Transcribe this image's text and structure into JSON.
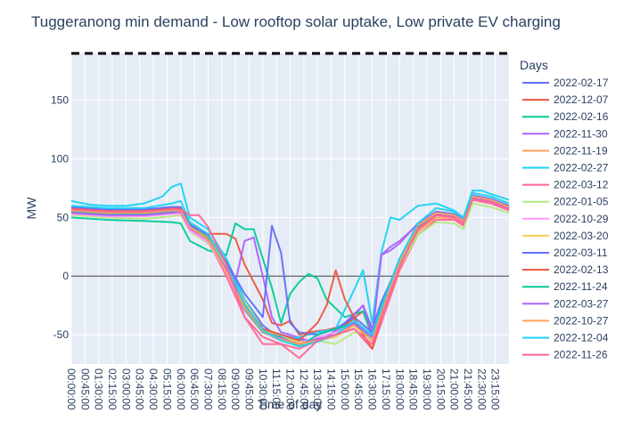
{
  "chart_data": {
    "type": "line",
    "title": "Tuggeranong min demand - Low rooftop solar uptake, Low private EV charging",
    "xlabel": "Time of day",
    "ylabel": "MW",
    "ylim": [
      -75,
      190
    ],
    "yticks": [
      -50,
      0,
      50,
      100,
      150
    ],
    "x_tick_labels": [
      "00:00:00",
      "00:45:00",
      "01:30:00",
      "02:15:00",
      "03:00:00",
      "03:45:00",
      "04:30:00",
      "05:15:00",
      "06:00:00",
      "06:45:00",
      "07:30:00",
      "08:15:00",
      "09:00:00",
      "09:45:00",
      "10:30:00",
      "11:15:00",
      "12:00:00",
      "12:45:00",
      "13:30:00",
      "14:15:00",
      "15:00:00",
      "15:45:00",
      "16:30:00",
      "17:15:00",
      "18:00:00",
      "18:45:00",
      "19:30:00",
      "20:15:00",
      "21:00:00",
      "21:45:00",
      "22:30:00",
      "23:15:00"
    ],
    "x_unit": "hours",
    "x_range": [
      0,
      24
    ],
    "grid": true,
    "legend_title": "Days",
    "legend_position": "right",
    "reference_lines": [
      {
        "y": 0,
        "style": "solid",
        "color": "#444444"
      },
      {
        "y": 190,
        "style": "dashed",
        "color": "#000000"
      }
    ],
    "series": [
      {
        "name": "2022-02-17",
        "color": "#636efa",
        "x": [
          0,
          2,
          4,
          5.5,
          6,
          6.5,
          7.5,
          8.5,
          9.5,
          10.5,
          11,
          11.5,
          12,
          13,
          14,
          15,
          16,
          16.5,
          17,
          18,
          19,
          20,
          21,
          21.5,
          22,
          23,
          24
        ],
        "y": [
          57,
          55,
          55,
          57,
          57,
          44,
          34,
          12,
          -20,
          -42,
          -48,
          -50,
          -52,
          -56,
          -52,
          -42,
          -25,
          -45,
          -22,
          12,
          38,
          52,
          51,
          46,
          68,
          65,
          59
        ]
      },
      {
        "name": "2022-12-07",
        "color": "#ef553b",
        "x": [
          0,
          2,
          4,
          5.5,
          6,
          6.5,
          7.5,
          8.5,
          9,
          9.5,
          10,
          10.5,
          11,
          11.5,
          12,
          12.5,
          13,
          14,
          15,
          16,
          16.5,
          17,
          18,
          19,
          20,
          21,
          21.5,
          22,
          23,
          24
        ],
        "y": [
          58,
          56,
          56,
          58,
          58,
          42,
          36,
          36,
          32,
          10,
          -5,
          -20,
          -40,
          -42,
          -38,
          -50,
          -48,
          -46,
          -42,
          -30,
          -50,
          -28,
          10,
          38,
          52,
          50,
          45,
          67,
          64,
          58
        ]
      },
      {
        "name": "2022-02-16",
        "color": "#00cc96",
        "x": [
          0,
          2,
          4,
          5.5,
          6,
          6.5,
          7.5,
          8.5,
          9,
          9.5,
          10,
          10.5,
          11,
          11.5,
          12,
          12.5,
          13,
          13.5,
          14,
          15,
          16,
          16.5,
          17,
          18,
          19,
          20,
          21,
          21.5,
          22,
          23,
          24
        ],
        "y": [
          50,
          48,
          47,
          46,
          45,
          30,
          22,
          18,
          45,
          40,
          40,
          15,
          -10,
          -40,
          -15,
          -5,
          2,
          -2,
          -20,
          -35,
          -30,
          -52,
          -30,
          10,
          40,
          53,
          51,
          46,
          68,
          65,
          59
        ]
      },
      {
        "name": "2022-11-30",
        "color": "#ab63fa",
        "x": [
          0,
          2,
          4,
          5.5,
          6,
          6.5,
          7.5,
          8.5,
          9,
          9.5,
          10,
          10.5,
          11,
          11.5,
          12,
          13,
          14,
          15,
          16,
          16.5,
          17,
          17.5,
          18,
          19,
          20,
          21,
          21.5,
          22,
          23,
          24
        ],
        "y": [
          55,
          53,
          53,
          55,
          56,
          42,
          32,
          10,
          -5,
          30,
          33,
          0,
          -35,
          -48,
          -50,
          -55,
          -52,
          -40,
          -25,
          -50,
          18,
          22,
          28,
          45,
          55,
          52,
          47,
          69,
          65,
          59
        ]
      },
      {
        "name": "2022-11-19",
        "color": "#ffa15a",
        "x": [
          0,
          2,
          4,
          5.5,
          6,
          6.5,
          7.5,
          8.5,
          9.5,
          10.5,
          11.5,
          12.5,
          13.5,
          14.5,
          15.5,
          16.5,
          17,
          18,
          19,
          20,
          21,
          21.5,
          22,
          23,
          24
        ],
        "y": [
          54,
          52,
          52,
          54,
          55,
          40,
          28,
          5,
          -28,
          -48,
          -55,
          -58,
          -55,
          -50,
          -40,
          -55,
          -35,
          8,
          38,
          50,
          49,
          44,
          66,
          63,
          57
        ]
      },
      {
        "name": "2022-02-27",
        "color": "#19d3f3",
        "x": [
          0,
          1,
          2,
          3,
          4,
          5,
          5.5,
          6,
          6.5,
          7.5,
          8.5,
          9.5,
          10.5,
          11.5,
          12.5,
          13.5,
          14.5,
          15.5,
          16,
          16.5,
          17,
          17.5,
          18,
          19,
          20,
          21,
          21.5,
          22,
          22.5,
          23,
          24
        ],
        "y": [
          64,
          61,
          60,
          60,
          62,
          68,
          76,
          79,
          50,
          40,
          15,
          -20,
          -45,
          -55,
          -52,
          -48,
          -45,
          -12,
          5,
          -40,
          20,
          50,
          48,
          60,
          62,
          56,
          50,
          73,
          73,
          70,
          65
        ]
      },
      {
        "name": "2022-03-12",
        "color": "#ff6692",
        "x": [
          0,
          2,
          4,
          5.5,
          6,
          6.5,
          7.5,
          8.5,
          9.5,
          10.5,
          11.5,
          12.5,
          13.5,
          14.5,
          15.5,
          16.5,
          17,
          18,
          19,
          20,
          21,
          21.5,
          22,
          23,
          24
        ],
        "y": [
          55,
          53,
          52,
          54,
          54,
          40,
          30,
          0,
          -35,
          -52,
          -58,
          -62,
          -55,
          -50,
          -45,
          -62,
          -40,
          5,
          35,
          48,
          48,
          43,
          65,
          62,
          56
        ]
      },
      {
        "name": "2022-01-05",
        "color": "#b6e880",
        "x": [
          0,
          2,
          4,
          5.5,
          6,
          6.5,
          7.5,
          8.5,
          9.5,
          10.5,
          11.5,
          12.5,
          13.5,
          14.5,
          15.5,
          16.5,
          17,
          18,
          19,
          20,
          21,
          21.5,
          22,
          23,
          24
        ],
        "y": [
          52,
          50,
          49,
          51,
          52,
          38,
          28,
          5,
          -25,
          -45,
          -52,
          -56,
          -55,
          -58,
          -48,
          -52,
          -30,
          8,
          35,
          46,
          45,
          40,
          62,
          59,
          54
        ]
      },
      {
        "name": "2022-10-29",
        "color": "#ff97ff",
        "x": [
          0,
          2,
          4,
          5.5,
          6,
          6.5,
          7.5,
          8.5,
          9.5,
          10.5,
          11.5,
          12.5,
          13.5,
          14.5,
          15.5,
          16.5,
          17,
          18,
          19,
          20,
          21,
          21.5,
          22,
          23,
          24
        ],
        "y": [
          53,
          51,
          51,
          53,
          53,
          39,
          29,
          3,
          -30,
          -48,
          -54,
          -57,
          -52,
          -48,
          -40,
          -50,
          -28,
          10,
          40,
          52,
          50,
          45,
          67,
          63,
          57
        ]
      },
      {
        "name": "2022-03-20",
        "color": "#fecb52",
        "x": [
          0,
          2,
          4,
          5.5,
          6,
          6.5,
          7.5,
          8.5,
          9.5,
          10.5,
          11.5,
          12.5,
          13.5,
          14.5,
          15.5,
          16.5,
          17,
          18,
          19,
          20,
          21,
          21.5,
          22,
          23,
          24
        ],
        "y": [
          56,
          54,
          54,
          56,
          56,
          42,
          33,
          8,
          -22,
          -45,
          -53,
          -57,
          -55,
          -52,
          -42,
          -55,
          -32,
          12,
          42,
          54,
          52,
          47,
          68,
          65,
          60
        ]
      },
      {
        "name": "2022-03-11",
        "color": "#636efa",
        "x": [
          0,
          2,
          4,
          5.5,
          6,
          6.5,
          7.5,
          8.5,
          9.5,
          10.5,
          11,
          11.5,
          12,
          12.5,
          13.5,
          14.5,
          15.5,
          16.5,
          17,
          18,
          19,
          20,
          21,
          21.5,
          22,
          23,
          24
        ],
        "y": [
          59,
          57,
          57,
          59,
          59,
          44,
          35,
          12,
          -15,
          -35,
          43,
          20,
          -40,
          -48,
          -50,
          -45,
          -35,
          -48,
          -25,
          15,
          42,
          55,
          53,
          48,
          69,
          66,
          60
        ]
      },
      {
        "name": "2022-02-13",
        "color": "#ef553b",
        "x": [
          0,
          2,
          4,
          5.5,
          6,
          6.5,
          7.5,
          8.5,
          9.5,
          10.5,
          11.5,
          12.5,
          13.5,
          14,
          14.5,
          15,
          15.5,
          16,
          16.5,
          17,
          18,
          19,
          20,
          21,
          21.5,
          22,
          23,
          24
        ],
        "y": [
          57,
          55,
          55,
          57,
          57,
          42,
          32,
          5,
          -25,
          -45,
          -50,
          -55,
          -40,
          -25,
          5,
          -20,
          -35,
          -50,
          -62,
          -35,
          10,
          40,
          52,
          51,
          46,
          67,
          64,
          58
        ]
      },
      {
        "name": "2022-11-24",
        "color": "#00cc96",
        "x": [
          0,
          2,
          4,
          5.5,
          6,
          6.5,
          7.5,
          8.5,
          9.5,
          10.5,
          11.5,
          12.5,
          13,
          13.5,
          14.5,
          15.5,
          16.5,
          17,
          18,
          19,
          20,
          21,
          21.5,
          22,
          23,
          24
        ],
        "y": [
          55,
          53,
          53,
          55,
          56,
          42,
          32,
          5,
          -28,
          -48,
          -52,
          -60,
          -55,
          -50,
          -45,
          -40,
          -55,
          -30,
          10,
          40,
          53,
          51,
          46,
          68,
          64,
          58
        ]
      },
      {
        "name": "2022-03-27",
        "color": "#ab63fa",
        "x": [
          0,
          2,
          4,
          5.5,
          6,
          6.5,
          7.5,
          8.5,
          9.5,
          10.5,
          11.5,
          12.5,
          13.5,
          14.5,
          15.5,
          16.5,
          17,
          17.5,
          18,
          19,
          20,
          21,
          21.5,
          22,
          23,
          24
        ],
        "y": [
          54,
          52,
          52,
          54,
          55,
          41,
          31,
          6,
          -26,
          -47,
          -53,
          -58,
          -54,
          -50,
          -40,
          -52,
          18,
          25,
          30,
          44,
          53,
          51,
          46,
          67,
          64,
          58
        ]
      },
      {
        "name": "2022-10-27",
        "color": "#ffa15a",
        "x": [
          0,
          2,
          4,
          5.5,
          6,
          6.5,
          7.5,
          8.5,
          9.5,
          10.5,
          11.5,
          12.5,
          13.5,
          14.5,
          15.5,
          16.5,
          17,
          18,
          19,
          20,
          21,
          21.5,
          22,
          23,
          24
        ],
        "y": [
          56,
          54,
          54,
          56,
          56,
          42,
          31,
          4,
          -27,
          -47,
          -54,
          -58,
          -55,
          -50,
          -42,
          -55,
          -32,
          12,
          43,
          54,
          52,
          47,
          68,
          65,
          59
        ]
      },
      {
        "name": "2022-12-04",
        "color": "#19d3f3",
        "x": [
          0,
          2,
          4,
          5.5,
          6,
          6.5,
          7.5,
          8.5,
          9.5,
          10.5,
          11.5,
          12.5,
          13.5,
          14.5,
          15.5,
          16.5,
          17,
          18,
          19,
          20,
          21,
          21.5,
          22,
          23,
          24
        ],
        "y": [
          60,
          58,
          58,
          62,
          64,
          46,
          36,
          10,
          -24,
          -46,
          -55,
          -60,
          -56,
          -50,
          -38,
          -50,
          -26,
          15,
          45,
          58,
          55,
          50,
          71,
          68,
          62
        ]
      },
      {
        "name": "2022-11-26",
        "color": "#ff6692",
        "x": [
          0,
          2,
          4,
          5.5,
          6,
          6.5,
          7,
          7.5,
          8.5,
          9.5,
          10.5,
          11.5,
          12.5,
          13.5,
          14.5,
          15.5,
          16.5,
          17,
          18,
          19,
          20,
          21,
          21.5,
          22,
          23,
          24
        ],
        "y": [
          57,
          55,
          55,
          57,
          57,
          52,
          52,
          42,
          10,
          -35,
          -58,
          -58,
          -70,
          -55,
          -50,
          -45,
          -58,
          -35,
          8,
          40,
          52,
          50,
          45,
          66,
          63,
          57
        ]
      }
    ]
  }
}
